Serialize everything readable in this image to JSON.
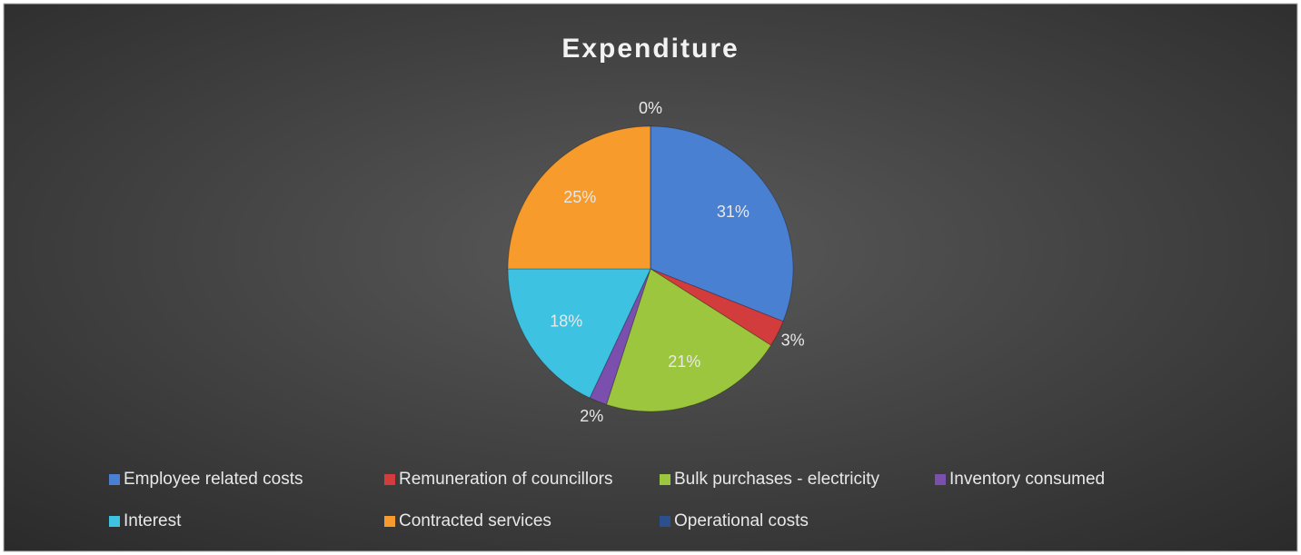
{
  "chart_data": {
    "type": "pie",
    "title": "Expenditure",
    "categories": [
      "Employee related costs",
      "Remuneration of councillors",
      "Bulk purchases - electricity",
      "Inventory consumed",
      "Interest",
      "Contracted services",
      "Operational costs"
    ],
    "values": [
      31,
      3,
      21,
      2,
      18,
      25,
      0
    ],
    "value_labels": [
      "31%",
      "3%",
      "21%",
      "2%",
      "18%",
      "25%",
      "0%"
    ],
    "colors": [
      "#4a80d2",
      "#d23c3c",
      "#9cc63e",
      "#7b4fae",
      "#3ec2e2",
      "#f69b2c",
      "#2c4f8e"
    ],
    "legend": "bottom"
  }
}
